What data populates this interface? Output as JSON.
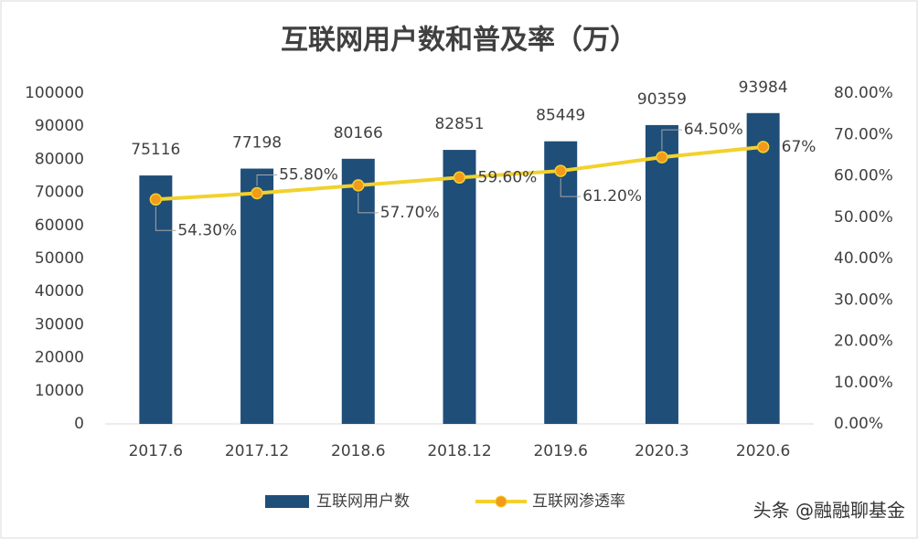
{
  "chart_data": {
    "type": "combo",
    "title": "互联网用户数和普及率（万）",
    "categories": [
      "2017.6",
      "2017.12",
      "2018.6",
      "2018.12",
      "2019.6",
      "2020.3",
      "2020.6"
    ],
    "series": [
      {
        "name": "互联网用户数",
        "type": "bar",
        "color": "#1f4e79",
        "axis": "y",
        "values": [
          75116,
          77198,
          80166,
          82851,
          85449,
          90359,
          93984
        ]
      },
      {
        "name": "互联网渗透率",
        "type": "line",
        "color": "#f2d12e",
        "marker_color": "#f29a1b",
        "axis": "y2",
        "values": [
          54.3,
          55.8,
          57.7,
          59.6,
          61.2,
          64.5,
          67
        ],
        "value_labels": [
          "54.30%",
          "55.80%",
          "57.70%",
          "59.60%",
          "61.20%",
          "64.50%",
          "67%"
        ]
      }
    ],
    "ylim": [
      0,
      100000
    ],
    "yticks": [
      0,
      10000,
      20000,
      30000,
      40000,
      50000,
      60000,
      70000,
      80000,
      90000,
      100000
    ],
    "y2lim": [
      0,
      80
    ],
    "y2ticks": [
      {
        "value": 0,
        "label": "0.00%"
      },
      {
        "value": 10,
        "label": "10.00%"
      },
      {
        "value": 20,
        "label": "20.00%"
      },
      {
        "value": 30,
        "label": "30.00%"
      },
      {
        "value": 40,
        "label": "40.00%"
      },
      {
        "value": 50,
        "label": "50.00%"
      },
      {
        "value": 60,
        "label": "60.00%"
      },
      {
        "value": 70,
        "label": "70.00%"
      },
      {
        "value": 80,
        "label": "80.00%"
      }
    ],
    "grid": false,
    "legend": "bottom",
    "watermark": "头条 @融融聊基金"
  }
}
